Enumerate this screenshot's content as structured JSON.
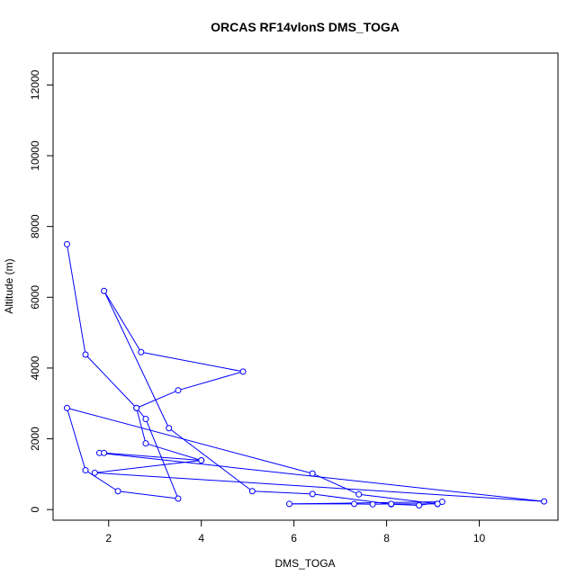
{
  "chart_data": {
    "type": "line",
    "title": "ORCAS RF14vlonS DMS_TOGA",
    "xlabel": "DMS_TOGA",
    "ylabel": "Altitude (m)",
    "xlim": [
      0.8,
      11.7
    ],
    "ylim": [
      -300,
      12900
    ],
    "xticks": [
      2,
      4,
      6,
      8,
      10
    ],
    "yticks": [
      0,
      2000,
      4000,
      6000,
      8000,
      10000,
      12000
    ],
    "grid": false,
    "legend": "none",
    "series_color": "#0000ff",
    "x": [
      1.1,
      1.5,
      2.6,
      3.5,
      4.9,
      2.7,
      1.9,
      3.3,
      5.1,
      6.4,
      8.1,
      8.7,
      9.2,
      5.9,
      7.3,
      7.7,
      8.1,
      9.1,
      9.1,
      7.4,
      6.4,
      1.1,
      1.5,
      2.2,
      3.5,
      2.8,
      2.6,
      2.8,
      4.0,
      1.7,
      11.4,
      1.8,
      1.9,
      4.0
    ],
    "y": [
      7500,
      4380,
      2870,
      3370,
      3900,
      4450,
      6180,
      2300,
      520,
      440,
      150,
      120,
      220,
      160,
      160,
      150,
      160,
      160,
      160,
      430,
      1020,
      2870,
      1110,
      520,
      310,
      2560,
      2870,
      1870,
      1390,
      1040,
      230,
      1600,
      1600,
      1390
    ]
  }
}
